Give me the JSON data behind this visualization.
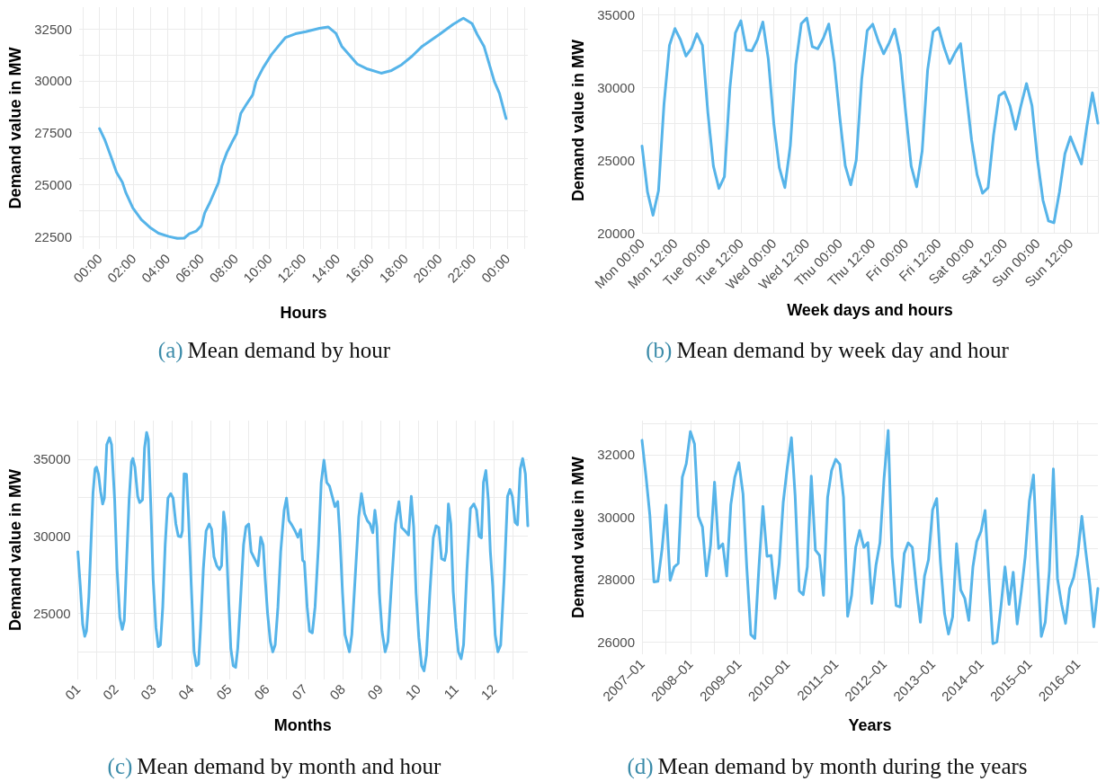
{
  "chart_data": [
    {
      "type": "line",
      "title": "(a) Mean demand by hour",
      "xlabel": "Hours",
      "ylabel": "Demand value in MW",
      "color": "#56b4e9",
      "grid": true,
      "x": [
        0,
        0.3,
        0.65,
        1.0,
        1.35,
        1.55,
        1.96,
        2.46,
        2.96,
        3.47,
        4.07,
        4.58,
        4.98,
        5.28,
        5.69,
        5.99,
        6.19,
        6.49,
        7.0,
        7.2,
        7.5,
        7.8,
        8.06,
        8.31,
        8.61,
        9.01,
        9.21,
        9.62,
        10.12,
        10.52,
        10.93,
        11.53,
        12.14,
        12.94,
        13.45,
        13.91,
        14.25,
        14.76,
        15.16,
        15.77,
        16.57,
        17.18,
        17.78,
        18.39,
        18.99,
        20.0,
        20.81,
        21.41,
        21.92,
        22.22,
        22.62,
        23.23,
        23.53,
        23.92
      ],
      "values": [
        27700,
        27180,
        26400,
        25590,
        25100,
        24610,
        23880,
        23310,
        22940,
        22660,
        22500,
        22410,
        22420,
        22630,
        22760,
        23020,
        23640,
        24130,
        25100,
        25910,
        26560,
        27050,
        27440,
        28430,
        28830,
        29320,
        29970,
        30620,
        31270,
        31670,
        32080,
        32270,
        32370,
        32530,
        32600,
        32290,
        31670,
        31190,
        30810,
        30570,
        30370,
        30500,
        30780,
        31190,
        31670,
        32240,
        32730,
        33020,
        32760,
        32240,
        31670,
        29970,
        29400,
        28180
      ],
      "xlim": [
        -1.2,
        25.2
      ],
      "xticks": [
        {
          "value": -1,
          "label": null
        },
        {
          "value": 0,
          "label": "00:00"
        },
        {
          "value": 1,
          "label": null
        },
        {
          "value": 2,
          "label": "02:00"
        },
        {
          "value": 3,
          "label": null
        },
        {
          "value": 4,
          "label": "04:00"
        },
        {
          "value": 5,
          "label": null
        },
        {
          "value": 6,
          "label": "06:00"
        },
        {
          "value": 7,
          "label": null
        },
        {
          "value": 8,
          "label": "08:00"
        },
        {
          "value": 9,
          "label": null
        },
        {
          "value": 10,
          "label": "10:00"
        },
        {
          "value": 11,
          "label": null
        },
        {
          "value": 12,
          "label": "12:00"
        },
        {
          "value": 13,
          "label": null
        },
        {
          "value": 14,
          "label": "14:00"
        },
        {
          "value": 15,
          "label": null
        },
        {
          "value": 16,
          "label": "16:00"
        },
        {
          "value": 17,
          "label": null
        },
        {
          "value": 18,
          "label": "18:00"
        },
        {
          "value": 19,
          "label": null
        },
        {
          "value": 20,
          "label": "20:00"
        },
        {
          "value": 21,
          "label": null
        },
        {
          "value": 22,
          "label": "22:00"
        },
        {
          "value": 23,
          "label": null
        },
        {
          "value": 24,
          "label": "00:00"
        },
        {
          "value": 25,
          "label": null
        }
      ],
      "ylim": [
        21900,
        33550
      ],
      "yticks": [
        22500,
        {
          "value": 23750,
          "label": null
        },
        25000,
        {
          "value": 26250,
          "label": null
        },
        27500,
        {
          "value": 28750,
          "label": null
        },
        30000,
        {
          "value": 31250,
          "label": null
        },
        32500
      ]
    },
    {
      "type": "line",
      "title": "(b) Mean demand by week day and hour",
      "xlabel": "Week days and hours",
      "ylabel": "Demand value in MW",
      "color": "#56b4e9",
      "grid": true,
      "categories": [
        "Mon 00:00",
        null,
        null,
        null,
        null,
        null,
        "Mon 12:00",
        null,
        null,
        null,
        null,
        null,
        "Tue 00:00",
        null,
        null,
        null,
        null,
        null,
        "Tue 12:00",
        null,
        null,
        null,
        null,
        null,
        "Wed 00:00",
        null,
        null,
        null,
        null,
        null,
        "Wed 12:00",
        null,
        null,
        null,
        null,
        null,
        "Thu 00:00",
        null,
        null,
        null,
        null,
        null,
        "Thu 12:00",
        null,
        null,
        null,
        null,
        null,
        "Fri 00:00",
        null,
        null,
        null,
        null,
        null,
        "Fri 12:00",
        null,
        null,
        null,
        null,
        null,
        "Sat 00:00",
        null,
        null,
        null,
        null,
        null,
        "Sat 12:00",
        null,
        null,
        null,
        null,
        null,
        "Sun 00:00",
        null,
        null,
        null,
        null,
        null,
        "Sun 12:00",
        null,
        null,
        null,
        null,
        null
      ],
      "values": [
        25970,
        22800,
        21210,
        22890,
        28830,
        32890,
        34040,
        33270,
        32150,
        32670,
        33680,
        32890,
        28230,
        24580,
        23050,
        23850,
        29960,
        33740,
        34580,
        32560,
        32510,
        33270,
        34490,
        31920,
        27480,
        24470,
        23110,
        25990,
        31570,
        34380,
        34760,
        32800,
        32650,
        33360,
        34350,
        31750,
        27970,
        24610,
        23300,
        24980,
        30570,
        33910,
        34340,
        33200,
        32310,
        33060,
        34000,
        32230,
        28280,
        24600,
        23160,
        25610,
        31210,
        33820,
        34100,
        32740,
        31640,
        32400,
        33000,
        29700,
        26380,
        24000,
        22720,
        23100,
        26730,
        29420,
        29680,
        28720,
        27120,
        28760,
        30260,
        28730,
        25040,
        22240,
        20820,
        20690,
        22810,
        25440,
        26600,
        25640,
        24730,
        27340,
        29630,
        27540
      ],
      "ylim": [
        19940,
        35510
      ],
      "yticks": [
        20000,
        {
          "value": 22500,
          "label": null
        },
        25000,
        {
          "value": 27500,
          "label": null
        },
        30000,
        {
          "value": 32500,
          "label": null
        },
        35000
      ]
    },
    {
      "type": "line",
      "title": "(c) Mean demand by month and hour",
      "xlabel": "Months",
      "ylabel": "Demand value in MW",
      "color": "#56b4e9",
      "grid": true,
      "x": [
        1.0,
        1.064,
        1.127,
        1.182,
        1.227,
        1.291,
        1.345,
        1.4,
        1.455,
        1.491,
        1.545,
        1.6,
        1.655,
        1.7,
        1.764,
        1.836,
        1.891,
        1.973,
        2.036,
        2.109,
        2.173,
        2.227,
        2.291,
        2.355,
        2.418,
        2.455,
        2.509,
        2.582,
        2.636,
        2.709,
        2.764,
        2.818,
        2.864,
        2.927,
        2.991,
        3.064,
        3.127,
        3.182,
        3.245,
        3.309,
        3.382,
        3.455,
        3.518,
        3.591,
        3.655,
        3.727,
        3.764,
        3.809,
        3.873,
        3.927,
        4.0,
        4.073,
        4.136,
        4.191,
        4.245,
        4.318,
        4.391,
        4.473,
        4.536,
        4.6,
        4.673,
        4.745,
        4.8,
        4.855,
        4.909,
        4.973,
        5.045,
        5.109,
        5.173,
        5.227,
        5.291,
        5.382,
        5.445,
        5.518,
        5.582,
        5.673,
        5.764,
        5.836,
        5.9,
        5.955,
        6.018,
        6.091,
        6.155,
        6.218,
        6.291,
        6.364,
        6.455,
        6.518,
        6.582,
        6.655,
        6.745,
        6.818,
        6.891,
        6.945,
        6.991,
        7.064,
        7.127,
        7.2,
        7.273,
        7.364,
        7.436,
        7.509,
        7.582,
        7.655,
        7.727,
        7.8,
        7.873,
        7.927,
        8.0,
        8.064,
        8.182,
        8.245,
        8.336,
        8.427,
        8.5,
        8.582,
        8.655,
        8.727,
        8.8,
        8.855,
        8.909,
        8.973,
        9.045,
        9.127,
        9.2,
        9.291,
        9.4,
        9.491,
        9.564,
        9.655,
        9.745,
        9.818,
        9.882,
        9.945,
        10.018,
        10.091,
        10.155,
        10.218,
        10.309,
        10.4,
        10.473,
        10.545,
        10.618,
        10.7,
        10.745,
        10.8,
        10.864,
        10.927,
        11.0,
        11.064,
        11.136,
        11.2,
        11.291,
        11.382,
        11.473,
        11.545,
        11.609,
        11.673,
        11.727,
        11.791,
        11.855,
        11.909,
        11.973,
        12.036,
        12.109,
        12.182,
        12.273,
        12.364,
        12.427,
        12.491,
        12.564,
        12.627,
        12.7,
        12.764,
        12.836,
        12.9
      ],
      "values": [
        28990,
        26750,
        24280,
        23500,
        23830,
        26080,
        29440,
        32800,
        34370,
        34480,
        34040,
        32910,
        32090,
        32470,
        35940,
        36390,
        35940,
        32350,
        27870,
        24730,
        23950,
        24510,
        28540,
        32350,
        34820,
        35040,
        34480,
        32580,
        32180,
        32350,
        35720,
        36730,
        36280,
        32130,
        27200,
        24060,
        22830,
        22940,
        25400,
        29440,
        32470,
        32760,
        32470,
        30790,
        30000,
        29960,
        30340,
        34040,
        34010,
        31230,
        26750,
        22490,
        21590,
        21700,
        24060,
        27870,
        30340,
        30790,
        30450,
        28660,
        28090,
        27830,
        28090,
        31570,
        30560,
        26750,
        22710,
        21590,
        21480,
        22710,
        25400,
        29440,
        30610,
        30790,
        28990,
        28540,
        28090,
        29930,
        29440,
        27200,
        24960,
        23160,
        22490,
        22940,
        25400,
        28990,
        31680,
        32470,
        31010,
        30740,
        30340,
        29930,
        30430,
        28430,
        28320,
        25400,
        23830,
        23720,
        25400,
        29440,
        33480,
        34930,
        33480,
        33250,
        32580,
        31910,
        32240,
        30110,
        26300,
        23610,
        22490,
        23610,
        27420,
        31230,
        32760,
        31460,
        31010,
        30790,
        30220,
        31680,
        30560,
        26300,
        23830,
        22490,
        23160,
        26750,
        30790,
        32240,
        30560,
        30340,
        30070,
        32580,
        30560,
        26300,
        23390,
        21590,
        21260,
        22270,
        26300,
        29890,
        30670,
        30560,
        28540,
        28430,
        28990,
        32090,
        30790,
        26410,
        24060,
        22490,
        22040,
        22940,
        27870,
        31790,
        32090,
        31680,
        30000,
        29890,
        33480,
        34260,
        32350,
        28990,
        26750,
        23610,
        22490,
        22940,
        27200,
        32580,
        33030,
        32580,
        30900,
        30740,
        34370,
        35040,
        34040,
        30670
      ],
      "xlim": [
        1,
        12.9
      ],
      "xticks": [
        {
          "value": 1,
          "label": "01"
        },
        {
          "value": 1.5,
          "label": null
        },
        {
          "value": 2,
          "label": "02"
        },
        {
          "value": 2.5,
          "label": null
        },
        {
          "value": 3,
          "label": "03"
        },
        {
          "value": 3.5,
          "label": null
        },
        {
          "value": 4,
          "label": "04"
        },
        {
          "value": 4.5,
          "label": null
        },
        {
          "value": 5,
          "label": "05"
        },
        {
          "value": 5.5,
          "label": null
        },
        {
          "value": 6,
          "label": "06"
        },
        {
          "value": 6.5,
          "label": null
        },
        {
          "value": 7,
          "label": "07"
        },
        {
          "value": 7.5,
          "label": null
        },
        {
          "value": 8,
          "label": "08"
        },
        {
          "value": 8.5,
          "label": null
        },
        {
          "value": 9,
          "label": "09"
        },
        {
          "value": 9.5,
          "label": null
        },
        {
          "value": 10,
          "label": "10"
        },
        {
          "value": 10.5,
          "label": null
        },
        {
          "value": 11,
          "label": "11"
        },
        {
          "value": 11.5,
          "label": null
        },
        {
          "value": 12,
          "label": "12"
        },
        {
          "value": 12.5,
          "label": null
        }
      ],
      "ylim": [
        20700,
        37500
      ],
      "yticks": [
        {
          "value": 22500,
          "label": null
        },
        25000,
        {
          "value": 27500,
          "label": null
        },
        30000,
        {
          "value": 32500,
          "label": null
        },
        35000
      ]
    },
    {
      "type": "line",
      "title": "(d) Mean demand by month during the years",
      "xlabel": "Years",
      "ylabel": "Demand value in MW",
      "color": "#56b4e9",
      "grid": true,
      "x": [
        "2007-01",
        "2007-02",
        "2007-03",
        "2007-04",
        "2007-05",
        "2007-06",
        "2007-07",
        "2007-08",
        "2007-09",
        "2007-10",
        "2007-11",
        "2007-12",
        "2008-01",
        "2008-02",
        "2008-03",
        "2008-04",
        "2008-05",
        "2008-06",
        "2008-07",
        "2008-08",
        "2008-09",
        "2008-10",
        "2008-11",
        "2008-12",
        "2009-01",
        "2009-02",
        "2009-03",
        "2009-04",
        "2009-05",
        "2009-06",
        "2009-07",
        "2009-08",
        "2009-09",
        "2009-10",
        "2009-11",
        "2009-12",
        "2010-01",
        "2010-02",
        "2010-03",
        "2010-04",
        "2010-05",
        "2010-06",
        "2010-07",
        "2010-08",
        "2010-09",
        "2010-10",
        "2010-11",
        "2010-12",
        "2011-01",
        "2011-02",
        "2011-03",
        "2011-04",
        "2011-05",
        "2011-06",
        "2011-07",
        "2011-08",
        "2011-09",
        "2011-10",
        "2011-11",
        "2011-12",
        "2012-01",
        "2012-02",
        "2012-03",
        "2012-04",
        "2012-05",
        "2012-06",
        "2012-07",
        "2012-08",
        "2012-09",
        "2012-10",
        "2012-11",
        "2012-12",
        "2013-01",
        "2013-02",
        "2013-03",
        "2013-04",
        "2013-05",
        "2013-06",
        "2013-07",
        "2013-08",
        "2013-09",
        "2013-10",
        "2013-11",
        "2013-12",
        "2014-01",
        "2014-02",
        "2014-03",
        "2014-04",
        "2014-05",
        "2014-06",
        "2014-07",
        "2014-08",
        "2014-09",
        "2014-10",
        "2014-11",
        "2014-12",
        "2015-01",
        "2015-02",
        "2015-03",
        "2015-04",
        "2015-05",
        "2015-06",
        "2015-07",
        "2015-08",
        "2015-09",
        "2015-10",
        "2015-11",
        "2015-12",
        "2016-01",
        "2016-02",
        "2016-03",
        "2016-04",
        "2016-05",
        "2016-06"
      ],
      "values": [
        32460,
        31260,
        30060,
        27920,
        27940,
        28970,
        30380,
        27970,
        28400,
        28510,
        31280,
        31710,
        32740,
        32340,
        30020,
        29680,
        28110,
        29090,
        31120,
        28990,
        29140,
        28110,
        30400,
        31280,
        31740,
        30740,
        28400,
        26230,
        26110,
        28400,
        30340,
        28740,
        28770,
        27390,
        28510,
        30460,
        31600,
        32540,
        30690,
        27630,
        27510,
        28400,
        31310,
        28940,
        28770,
        27490,
        30630,
        31490,
        31850,
        31690,
        30630,
        26820,
        27490,
        29030,
        29570,
        29030,
        29180,
        27230,
        28460,
        29180,
        31260,
        32770,
        28740,
        27160,
        27120,
        28830,
        29170,
        29030,
        27710,
        26630,
        28110,
        28630,
        30230,
        30590,
        28570,
        26910,
        26250,
        26800,
        29140,
        27660,
        27390,
        26690,
        28400,
        29220,
        29540,
        30210,
        28060,
        25940,
        26000,
        27140,
        28400,
        27200,
        28230,
        26570,
        27600,
        28740,
        30510,
        31350,
        28740,
        26170,
        26630,
        28290,
        31540,
        28030,
        27200,
        26590,
        27710,
        28060,
        28800,
        30020,
        28910,
        27830,
        26480,
        27710
      ],
      "xlim": [
        "2007-01",
        "2016-06"
      ],
      "xticks": [
        {
          "value": "2007-01",
          "label": "2007–01"
        },
        {
          "value": "2007-07",
          "label": null
        },
        {
          "value": "2008-01",
          "label": "2008–01"
        },
        {
          "value": "2008-07",
          "label": null
        },
        {
          "value": "2009-01",
          "label": "2009–01"
        },
        {
          "value": "2009-07",
          "label": null
        },
        {
          "value": "2010-01",
          "label": "2010–01"
        },
        {
          "value": "2010-07",
          "label": null
        },
        {
          "value": "2011-01",
          "label": "2011–01"
        },
        {
          "value": "2011-07",
          "label": null
        },
        {
          "value": "2012-01",
          "label": "2012–01"
        },
        {
          "value": "2012-07",
          "label": null
        },
        {
          "value": "2013-01",
          "label": "2013–01"
        },
        {
          "value": "2013-07",
          "label": null
        },
        {
          "value": "2014-01",
          "label": "2014–01"
        },
        {
          "value": "2014-07",
          "label": null
        },
        {
          "value": "2015-01",
          "label": "2015–01"
        },
        {
          "value": "2015-07",
          "label": null
        },
        {
          "value": "2016-01",
          "label": "2016–01"
        }
      ],
      "ylim": [
        25600,
        33090
      ],
      "yticks": [
        26000,
        {
          "value": 27000,
          "label": null
        },
        28000,
        {
          "value": 29000,
          "label": null
        },
        30000,
        {
          "value": 31000,
          "label": null
        },
        32000,
        {
          "value": 33000,
          "label": null
        }
      ]
    }
  ]
}
